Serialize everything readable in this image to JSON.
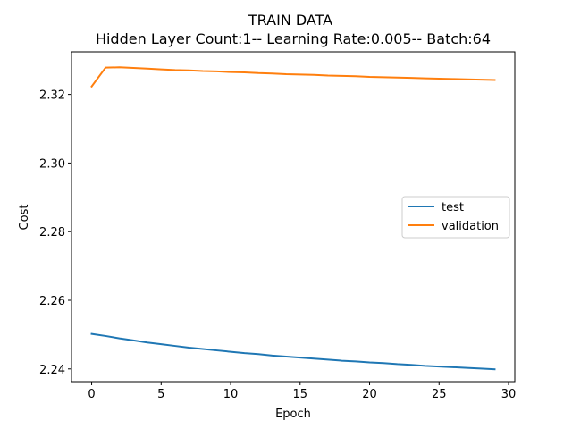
{
  "chart_data": {
    "type": "line",
    "title": "TRAIN DATA",
    "subtitle": "Hidden Layer Count:1-- Learning Rate:0.005-- Batch:64",
    "xlabel": "Epoch",
    "ylabel": "Cost",
    "xlim": [
      -1.45,
      30.45
    ],
    "ylim": [
      2.2363,
      2.3324
    ],
    "xticks": [
      0,
      5,
      10,
      15,
      20,
      25,
      30
    ],
    "xtick_labels": [
      "0",
      "5",
      "10",
      "15",
      "20",
      "25",
      "30"
    ],
    "yticks": [
      2.24,
      2.26,
      2.28,
      2.3,
      2.32
    ],
    "ytick_labels": [
      "2.24",
      "2.26",
      "2.28",
      "2.30",
      "2.32"
    ],
    "grid": false,
    "legend_position": "center-right",
    "x": [
      0,
      1,
      2,
      3,
      4,
      5,
      6,
      7,
      8,
      9,
      10,
      11,
      12,
      13,
      14,
      15,
      16,
      17,
      18,
      19,
      20,
      21,
      22,
      23,
      24,
      25,
      26,
      27,
      28,
      29
    ],
    "series": [
      {
        "name": "test",
        "color": "#1f77b4",
        "values": [
          2.2502,
          2.2496,
          2.2489,
          2.2483,
          2.2477,
          2.2472,
          2.2467,
          2.2462,
          2.2458,
          2.2454,
          2.245,
          2.2446,
          2.2443,
          2.2439,
          2.2436,
          2.2433,
          2.243,
          2.2427,
          2.2424,
          2.2422,
          2.2419,
          2.2417,
          2.2414,
          2.2412,
          2.2409,
          2.2407,
          2.2405,
          2.2403,
          2.2401,
          2.2399
        ]
      },
      {
        "name": "validation",
        "color": "#ff7f0e",
        "values": [
          2.3223,
          2.3278,
          2.3279,
          2.3277,
          2.3275,
          2.3273,
          2.3271,
          2.327,
          2.3268,
          2.3267,
          2.3265,
          2.3264,
          2.3262,
          2.3261,
          2.3259,
          2.3258,
          2.3257,
          2.3255,
          2.3254,
          2.3253,
          2.3251,
          2.325,
          2.3249,
          2.3248,
          2.3247,
          2.3246,
          2.3245,
          2.3244,
          2.3243,
          2.3242
        ]
      }
    ]
  }
}
